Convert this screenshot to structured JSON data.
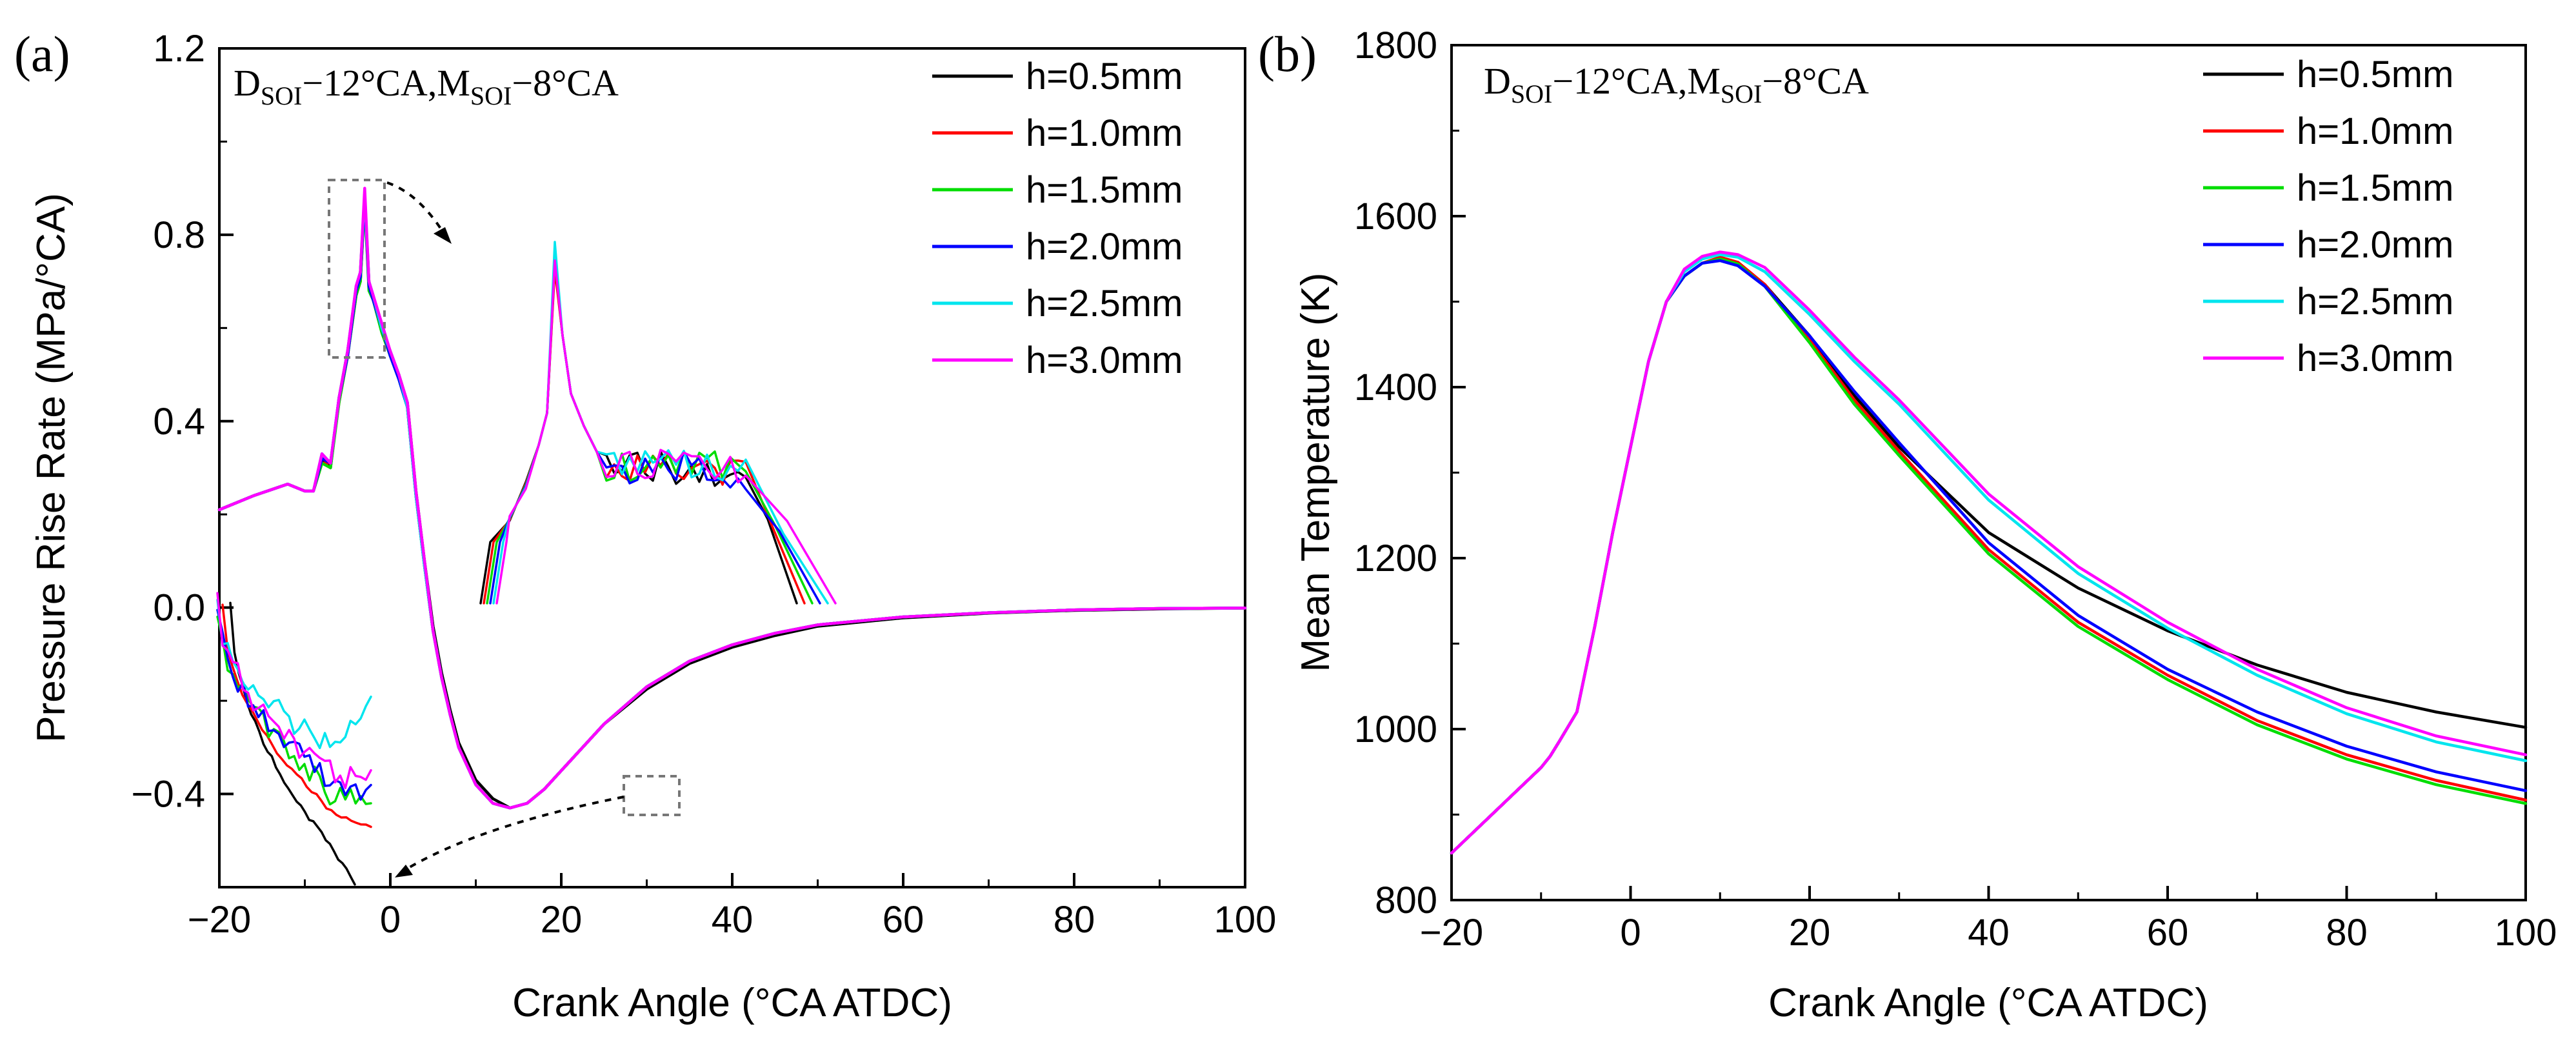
{
  "figure": {
    "colors": {
      "h=0.5mm": "#000000",
      "h=1.0mm": "#ff0000",
      "h=1.5mm": "#00dd00",
      "h=2.0mm": "#0000ff",
      "h=2.5mm": "#00e5ee",
      "h=3.0mm": "#ff00ff"
    }
  },
  "chart_data": [
    {
      "panel_label": "(a)",
      "type": "line",
      "title": "",
      "xlabel": "Crank Angle (°CA ATDC)",
      "ylabel": "Pressure Rise Rate (MPa/°CA)",
      "xlim": [
        -20,
        100
      ],
      "ylim": [
        -0.6,
        1.2
      ],
      "xticks": [
        -20,
        0,
        20,
        40,
        60,
        80,
        100
      ],
      "xtick_labels": [
        "−20",
        "0",
        "20",
        "40",
        "60",
        "80",
        "100"
      ],
      "yticks": [
        -0.4,
        0.0,
        0.4,
        0.8,
        1.2
      ],
      "ytick_labels": [
        "−0.4",
        "0.0",
        "0.4",
        "0.8",
        "1.2"
      ],
      "condition": {
        "d_base": "D",
        "d_sub": "SOI",
        "d_val": "−12°CA,",
        "m_base": "M",
        "m_sub": "SOI",
        "m_val": "−8°CA"
      },
      "legend": [
        "h=0.5mm",
        "h=1.0mm",
        "h=1.5mm",
        "h=2.0mm",
        "h=2.5mm",
        "h=3.0mm"
      ],
      "x": [
        -20,
        -16,
        -12,
        -10,
        -9,
        -8,
        -7,
        -6,
        -5,
        -4,
        -3.5,
        -3,
        -2.5,
        -2,
        -1,
        0,
        1,
        2,
        3,
        4,
        5,
        6,
        7,
        8,
        10,
        12,
        14,
        16,
        18,
        20,
        25,
        30,
        35,
        40,
        45,
        50,
        60,
        70,
        80,
        90,
        100
      ],
      "series": [
        {
          "name": "h=0.5mm",
          "values": [
            0.21,
            0.24,
            0.265,
            0.25,
            0.25,
            0.32,
            0.3,
            0.45,
            0.55,
            0.68,
            0.72,
            0.88,
            0.7,
            0.66,
            0.6,
            0.55,
            0.5,
            0.44,
            0.25,
            0.1,
            -0.04,
            -0.14,
            -0.22,
            -0.29,
            -0.37,
            -0.41,
            -0.43,
            -0.42,
            -0.39,
            -0.35,
            -0.25,
            -0.175,
            -0.12,
            -0.085,
            -0.06,
            -0.04,
            -0.022,
            -0.012,
            -0.006,
            -0.003,
            -0.001
          ]
        },
        {
          "name": "h=1.0mm",
          "values": [
            0.21,
            0.24,
            0.265,
            0.25,
            0.25,
            0.31,
            0.31,
            0.44,
            0.54,
            0.67,
            0.7,
            0.87,
            0.69,
            0.66,
            0.6,
            0.54,
            0.5,
            0.43,
            0.24,
            0.09,
            -0.05,
            -0.15,
            -0.23,
            -0.3,
            -0.38,
            -0.42,
            -0.43,
            -0.42,
            -0.39,
            -0.35,
            -0.25,
            -0.17,
            -0.115,
            -0.08,
            -0.055,
            -0.037,
            -0.02,
            -0.011,
            -0.005,
            -0.002,
            -0.001
          ]
        },
        {
          "name": "h=1.5mm",
          "values": [
            0.21,
            0.24,
            0.265,
            0.25,
            0.25,
            0.31,
            0.3,
            0.44,
            0.54,
            0.67,
            0.7,
            0.87,
            0.68,
            0.66,
            0.59,
            0.54,
            0.49,
            0.43,
            0.24,
            0.09,
            -0.05,
            -0.15,
            -0.23,
            -0.3,
            -0.38,
            -0.42,
            -0.43,
            -0.42,
            -0.39,
            -0.35,
            -0.25,
            -0.17,
            -0.115,
            -0.08,
            -0.055,
            -0.037,
            -0.02,
            -0.011,
            -0.005,
            -0.002,
            -0.001
          ]
        },
        {
          "name": "h=2.0mm",
          "values": [
            0.21,
            0.24,
            0.265,
            0.25,
            0.25,
            0.32,
            0.31,
            0.45,
            0.54,
            0.68,
            0.71,
            0.88,
            0.69,
            0.66,
            0.6,
            0.54,
            0.49,
            0.43,
            0.24,
            0.09,
            -0.05,
            -0.15,
            -0.23,
            -0.3,
            -0.38,
            -0.42,
            -0.43,
            -0.42,
            -0.39,
            -0.35,
            -0.25,
            -0.17,
            -0.115,
            -0.08,
            -0.055,
            -0.037,
            -0.02,
            -0.011,
            -0.005,
            -0.002,
            -0.001
          ]
        },
        {
          "name": "h=2.5mm",
          "values": [
            0.21,
            0.24,
            0.265,
            0.25,
            0.25,
            0.33,
            0.31,
            0.45,
            0.55,
            0.69,
            0.72,
            0.89,
            0.7,
            0.67,
            0.6,
            0.55,
            0.5,
            0.43,
            0.24,
            0.09,
            -0.05,
            -0.15,
            -0.23,
            -0.3,
            -0.38,
            -0.42,
            -0.43,
            -0.42,
            -0.39,
            -0.35,
            -0.25,
            -0.17,
            -0.115,
            -0.08,
            -0.055,
            -0.037,
            -0.02,
            -0.011,
            -0.005,
            -0.002,
            -0.001
          ]
        },
        {
          "name": "h=3.0mm",
          "values": [
            0.21,
            0.24,
            0.265,
            0.25,
            0.25,
            0.33,
            0.31,
            0.45,
            0.55,
            0.69,
            0.72,
            0.9,
            0.7,
            0.67,
            0.61,
            0.55,
            0.5,
            0.44,
            0.25,
            0.1,
            -0.05,
            -0.15,
            -0.23,
            -0.3,
            -0.38,
            -0.42,
            -0.43,
            -0.42,
            -0.39,
            -0.35,
            -0.25,
            -0.17,
            -0.115,
            -0.08,
            -0.055,
            -0.037,
            -0.02,
            -0.011,
            -0.005,
            -0.002,
            -0.001
          ]
        }
      ],
      "zoom_insets": [
        {
          "description": "magnified peak region",
          "region_x": [
            -5,
            1
          ],
          "region_y": [
            0.55,
            0.91
          ],
          "peak_values": [
            0.73,
            0.72,
            0.74,
            0.75,
            0.78,
            0.74
          ]
        },
        {
          "description": "magnified minimum region",
          "region_x": [
            12,
            18
          ],
          "region_y": [
            -0.44,
            -0.38
          ]
        }
      ]
    },
    {
      "panel_label": "(b)",
      "type": "line",
      "title": "",
      "xlabel": "Crank Angle (°CA ATDC)",
      "ylabel": "Mean Temperature (K)",
      "xlim": [
        -20,
        100
      ],
      "ylim": [
        800,
        1800
      ],
      "xticks": [
        -20,
        0,
        20,
        40,
        60,
        80,
        100
      ],
      "xtick_labels": [
        "−20",
        "0",
        "20",
        "40",
        "60",
        "80",
        "100"
      ],
      "yticks": [
        800,
        1000,
        1200,
        1400,
        1600,
        1800
      ],
      "ytick_labels": [
        "800",
        "1000",
        "1200",
        "1400",
        "1600",
        "1800"
      ],
      "condition": {
        "d_base": "D",
        "d_sub": "SOI",
        "d_val": "−12°CA,",
        "m_base": "M",
        "m_sub": "SOI",
        "m_val": "−8°CA"
      },
      "legend": [
        "h=0.5mm",
        "h=1.0mm",
        "h=1.5mm",
        "h=2.0mm",
        "h=2.5mm",
        "h=3.0mm"
      ],
      "x": [
        -20,
        -15,
        -12,
        -10,
        -9,
        -8,
        -6,
        -4,
        -2,
        0,
        2,
        4,
        6,
        8,
        10,
        12,
        15,
        20,
        25,
        30,
        40,
        50,
        60,
        70,
        80,
        90,
        100
      ],
      "series": [
        {
          "name": "h=0.5mm",
          "values": [
            855,
            905,
            935,
            955,
            968,
            985,
            1020,
            1120,
            1230,
            1330,
            1430,
            1500,
            1530,
            1545,
            1550,
            1545,
            1520,
            1460,
            1390,
            1330,
            1230,
            1165,
            1115,
            1075,
            1043,
            1020,
            1002
          ]
        },
        {
          "name": "h=1.0mm",
          "values": [
            855,
            905,
            935,
            955,
            968,
            985,
            1020,
            1120,
            1230,
            1330,
            1430,
            1500,
            1530,
            1545,
            1552,
            1546,
            1520,
            1455,
            1385,
            1325,
            1210,
            1125,
            1063,
            1010,
            970,
            940,
            917
          ]
        },
        {
          "name": "h=1.5mm",
          "values": [
            855,
            905,
            935,
            955,
            968,
            985,
            1020,
            1120,
            1230,
            1330,
            1430,
            1500,
            1530,
            1545,
            1550,
            1544,
            1518,
            1452,
            1380,
            1320,
            1205,
            1120,
            1058,
            1005,
            965,
            935,
            913
          ]
        },
        {
          "name": "h=2.0mm",
          "values": [
            855,
            905,
            935,
            955,
            968,
            985,
            1020,
            1120,
            1230,
            1330,
            1430,
            1500,
            1530,
            1545,
            1548,
            1542,
            1518,
            1460,
            1395,
            1335,
            1218,
            1133,
            1070,
            1020,
            980,
            950,
            928
          ]
        },
        {
          "name": "h=2.5mm",
          "values": [
            855,
            905,
            935,
            955,
            968,
            985,
            1020,
            1120,
            1230,
            1330,
            1430,
            1500,
            1535,
            1550,
            1555,
            1552,
            1535,
            1485,
            1430,
            1380,
            1268,
            1182,
            1118,
            1063,
            1018,
            985,
            963
          ]
        },
        {
          "name": "h=3.0mm",
          "values": [
            855,
            905,
            935,
            955,
            968,
            985,
            1020,
            1120,
            1230,
            1330,
            1430,
            1500,
            1538,
            1553,
            1558,
            1555,
            1540,
            1490,
            1435,
            1385,
            1275,
            1190,
            1125,
            1070,
            1025,
            992,
            970
          ]
        }
      ]
    }
  ]
}
